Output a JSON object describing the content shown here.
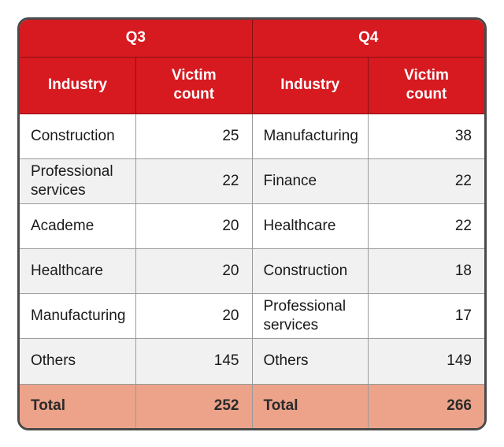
{
  "chart_data": {
    "type": "table",
    "groups": [
      "Q3",
      "Q4"
    ],
    "columns": [
      "Industry",
      "Victim count"
    ],
    "rows": [
      {
        "q3_industry": "Construction",
        "q3_count": "25",
        "q4_industry": "Manufacturing",
        "q4_count": "38"
      },
      {
        "q3_industry": "Professional services",
        "q3_count": "22",
        "q4_industry": "Finance",
        "q4_count": "22"
      },
      {
        "q3_industry": "Academe",
        "q3_count": "20",
        "q4_industry": "Healthcare",
        "q4_count": "22"
      },
      {
        "q3_industry": "Healthcare",
        "q3_count": "20",
        "q4_industry": "Construction",
        "q4_count": "18"
      },
      {
        "q3_industry": "Manufacturing",
        "q3_count": "20",
        "q4_industry": "Professional services",
        "q4_count": "17"
      },
      {
        "q3_industry": "Others",
        "q3_count": "145",
        "q4_industry": "Others",
        "q4_count": "149"
      }
    ],
    "total": {
      "label": "Total",
      "q3_count": "252",
      "q4_count": "266"
    }
  },
  "colors": {
    "header_red": "#d71920",
    "total_salmon": "#eca38a",
    "row_alt_gray": "#f1f1f1",
    "frame": "#4a4a4a"
  }
}
